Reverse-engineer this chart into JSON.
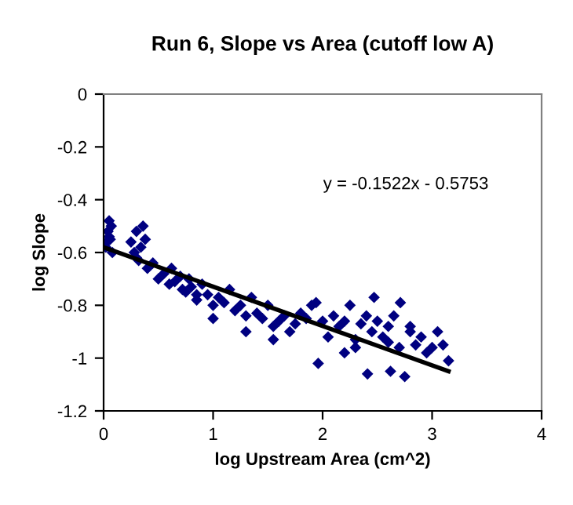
{
  "chart_data": {
    "type": "scatter",
    "title": "Run 6, Slope vs Area (cutoff low A)",
    "xlabel": "log Upstream Area (cm^2)",
    "ylabel": "log Slope",
    "xlim": [
      0,
      4
    ],
    "ylim": [
      -1.2,
      0
    ],
    "xticks": [
      0,
      1,
      2,
      3,
      4
    ],
    "yticks": [
      0,
      -0.2,
      -0.4,
      -0.6,
      -0.8,
      -1,
      -1.2
    ],
    "grid": false,
    "legend": false,
    "marker": "diamond",
    "annotations": [
      "y = -0.1522x - 0.5753"
    ],
    "series": [
      {
        "color": "#000080",
        "x": [
          0.02,
          0.04,
          0.05,
          0.06,
          0.07,
          0.08,
          0.03,
          0.05,
          0.25,
          0.28,
          0.3,
          0.32,
          0.34,
          0.36,
          0.38,
          0.3,
          0.4,
          0.45,
          0.5,
          0.55,
          0.6,
          0.62,
          0.65,
          0.7,
          0.72,
          0.75,
          0.78,
          0.8,
          0.85,
          0.9,
          0.95,
          1.0,
          1.05,
          1.1,
          1.15,
          1.2,
          1.25,
          1.3,
          1.35,
          1.4,
          1.45,
          1.5,
          1.55,
          1.6,
          1.65,
          1.7,
          1.75,
          1.8,
          1.85,
          1.9,
          1.94,
          1.96,
          2.0,
          2.05,
          2.1,
          2.15,
          2.2,
          2.25,
          2.3,
          2.35,
          2.4,
          2.41,
          2.45,
          2.47,
          2.5,
          2.55,
          2.6,
          2.62,
          2.65,
          2.7,
          2.71,
          2.75,
          2.8,
          2.85,
          2.9,
          2.95,
          3.0,
          3.05,
          3.1,
          3.15,
          1.55,
          1.0,
          0.85,
          1.3,
          2.2,
          2.6,
          2.8,
          2.3
        ],
        "values": [
          -0.58,
          -0.52,
          -0.48,
          -0.55,
          -0.5,
          -0.6,
          -0.56,
          -0.54,
          -0.56,
          -0.6,
          -0.52,
          -0.63,
          -0.58,
          -0.5,
          -0.55,
          -0.62,
          -0.66,
          -0.64,
          -0.7,
          -0.68,
          -0.72,
          -0.66,
          -0.71,
          -0.69,
          -0.74,
          -0.75,
          -0.7,
          -0.73,
          -0.78,
          -0.72,
          -0.76,
          -0.8,
          -0.77,
          -0.79,
          -0.74,
          -0.82,
          -0.8,
          -0.84,
          -0.77,
          -0.83,
          -0.85,
          -0.8,
          -0.88,
          -0.86,
          -0.84,
          -0.9,
          -0.87,
          -0.83,
          -0.85,
          -0.8,
          -0.79,
          -1.02,
          -0.86,
          -0.92,
          -0.84,
          -0.88,
          -0.86,
          -0.8,
          -0.93,
          -0.87,
          -0.84,
          -1.06,
          -0.9,
          -0.77,
          -0.86,
          -0.92,
          -0.88,
          -1.05,
          -0.84,
          -0.96,
          -0.79,
          -1.07,
          -0.9,
          -0.95,
          -0.92,
          -0.98,
          -0.96,
          -0.9,
          -0.95,
          -1.01,
          -0.93,
          -0.85,
          -0.76,
          -0.9,
          -0.98,
          -0.94,
          -0.88,
          -0.96
        ]
      },
      {
        "type": "line",
        "color": "#000000",
        "marker": "none",
        "line_style": "solid",
        "x": [
          0,
          3.15
        ],
        "values": [
          -0.58,
          -1.05
        ]
      }
    ]
  }
}
